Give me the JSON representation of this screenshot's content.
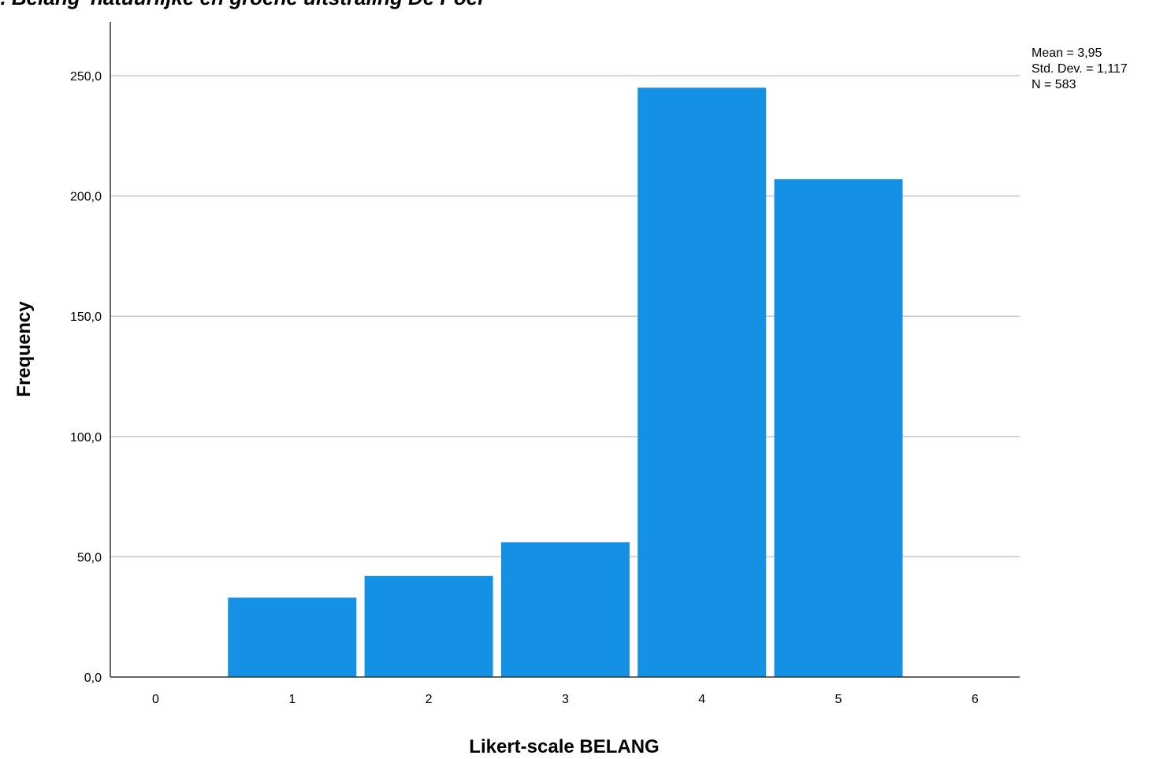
{
  "chart_data": {
    "type": "bar",
    "title": "... Belang 'natuurlijke en groene uitstraling De Poel'",
    "xlabel": "Likert-scale BELANG",
    "ylabel": "Frequency",
    "x_ticks": [
      "0",
      "1",
      "2",
      "3",
      "4",
      "5",
      "6"
    ],
    "categories": [
      "1",
      "2",
      "3",
      "4",
      "5"
    ],
    "values": [
      33,
      42,
      56,
      245,
      207
    ],
    "ylim": [
      0,
      250
    ],
    "y_ticks": [
      "0,0",
      "50,0",
      "100,0",
      "150,0",
      "200,0",
      "250,0"
    ],
    "y_tick_values": [
      0,
      50,
      100,
      150,
      200,
      250
    ],
    "grid": true,
    "bar_color": "#1490e5",
    "stats": {
      "mean": "Mean = 3,95",
      "std": "Std. Dev. = 1,117",
      "n": "N = 583"
    }
  }
}
